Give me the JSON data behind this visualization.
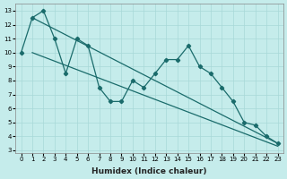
{
  "xlabel": "Humidex (Indice chaleur)",
  "bg_color": "#c5eceb",
  "grid_color": "#a8d8d8",
  "line_color": "#1a6b6b",
  "x_values": [
    0,
    1,
    2,
    3,
    4,
    5,
    6,
    7,
    8,
    9,
    10,
    11,
    12,
    13,
    14,
    15,
    16,
    17,
    18,
    19,
    20,
    21,
    22,
    23
  ],
  "line1": [
    10,
    12.5,
    13,
    11,
    8.5,
    11,
    10.5,
    7.5,
    6.5,
    6.5,
    8.0,
    7.5,
    8.5,
    9.5,
    9.5,
    10.5,
    9.0,
    8.5,
    7.5,
    6.5,
    5.0,
    4.8,
    4.0,
    3.5
  ],
  "trend_upper_start": 12.5,
  "trend_upper_end": 3.5,
  "trend_lower_start": 10.0,
  "trend_lower_end": 3.3,
  "xlim": [
    -0.5,
    23.5
  ],
  "ylim": [
    2.8,
    13.5
  ],
  "xticks": [
    0,
    1,
    2,
    3,
    4,
    5,
    6,
    7,
    8,
    9,
    10,
    11,
    12,
    13,
    14,
    15,
    16,
    17,
    18,
    19,
    20,
    21,
    22,
    23
  ],
  "yticks": [
    3,
    4,
    5,
    6,
    7,
    8,
    9,
    10,
    11,
    12,
    13
  ],
  "xlabel_fontsize": 6.5,
  "tick_fontsize": 5
}
